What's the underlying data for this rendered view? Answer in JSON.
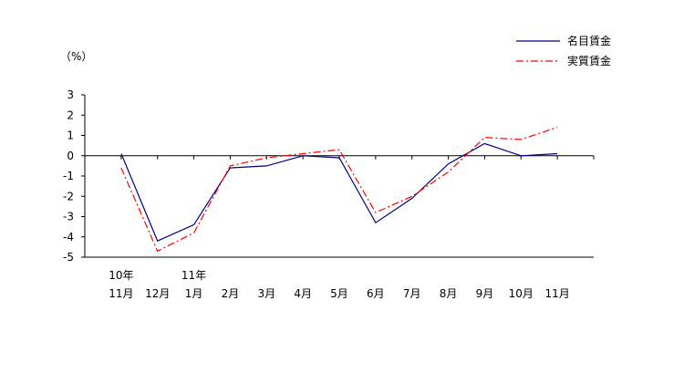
{
  "chart_data": {
    "type": "line",
    "unit_label": "（%）",
    "categories": [
      {
        "year": "10年",
        "month": "11月"
      },
      {
        "year": "",
        "month": "12月"
      },
      {
        "year": "11年",
        "month": "1月"
      },
      {
        "year": "",
        "month": "2月"
      },
      {
        "year": "",
        "month": "3月"
      },
      {
        "year": "",
        "month": "4月"
      },
      {
        "year": "",
        "month": "5月"
      },
      {
        "year": "",
        "month": "6月"
      },
      {
        "year": "",
        "month": "7月"
      },
      {
        "year": "",
        "month": "8月"
      },
      {
        "year": "",
        "month": "9月"
      },
      {
        "year": "",
        "month": "10月"
      },
      {
        "year": "",
        "month": "11月"
      }
    ],
    "ylim": [
      -5,
      3
    ],
    "yticks": [
      3,
      2,
      1,
      0,
      -1,
      -2,
      -3,
      -4,
      -5
    ],
    "ytick_labels": [
      "3",
      "2",
      "1",
      "0",
      "-1",
      "-2",
      "-3",
      "-4",
      "-5"
    ],
    "grid": false,
    "legend_position": "top-right",
    "series": [
      {
        "name": "名目賃金",
        "color": "#000080",
        "style": "solid",
        "values": [
          0.1,
          -4.2,
          -3.4,
          -0.6,
          -0.5,
          0.0,
          -0.1,
          -3.3,
          -2.1,
          -0.4,
          0.6,
          0.0,
          0.1
        ]
      },
      {
        "name": "実質賃金",
        "color": "#ff0000",
        "style": "dash-dot",
        "values": [
          -0.6,
          -4.7,
          -3.8,
          -0.5,
          -0.1,
          0.1,
          0.3,
          -2.8,
          -2.0,
          -0.8,
          0.9,
          0.8,
          1.4
        ]
      }
    ]
  }
}
